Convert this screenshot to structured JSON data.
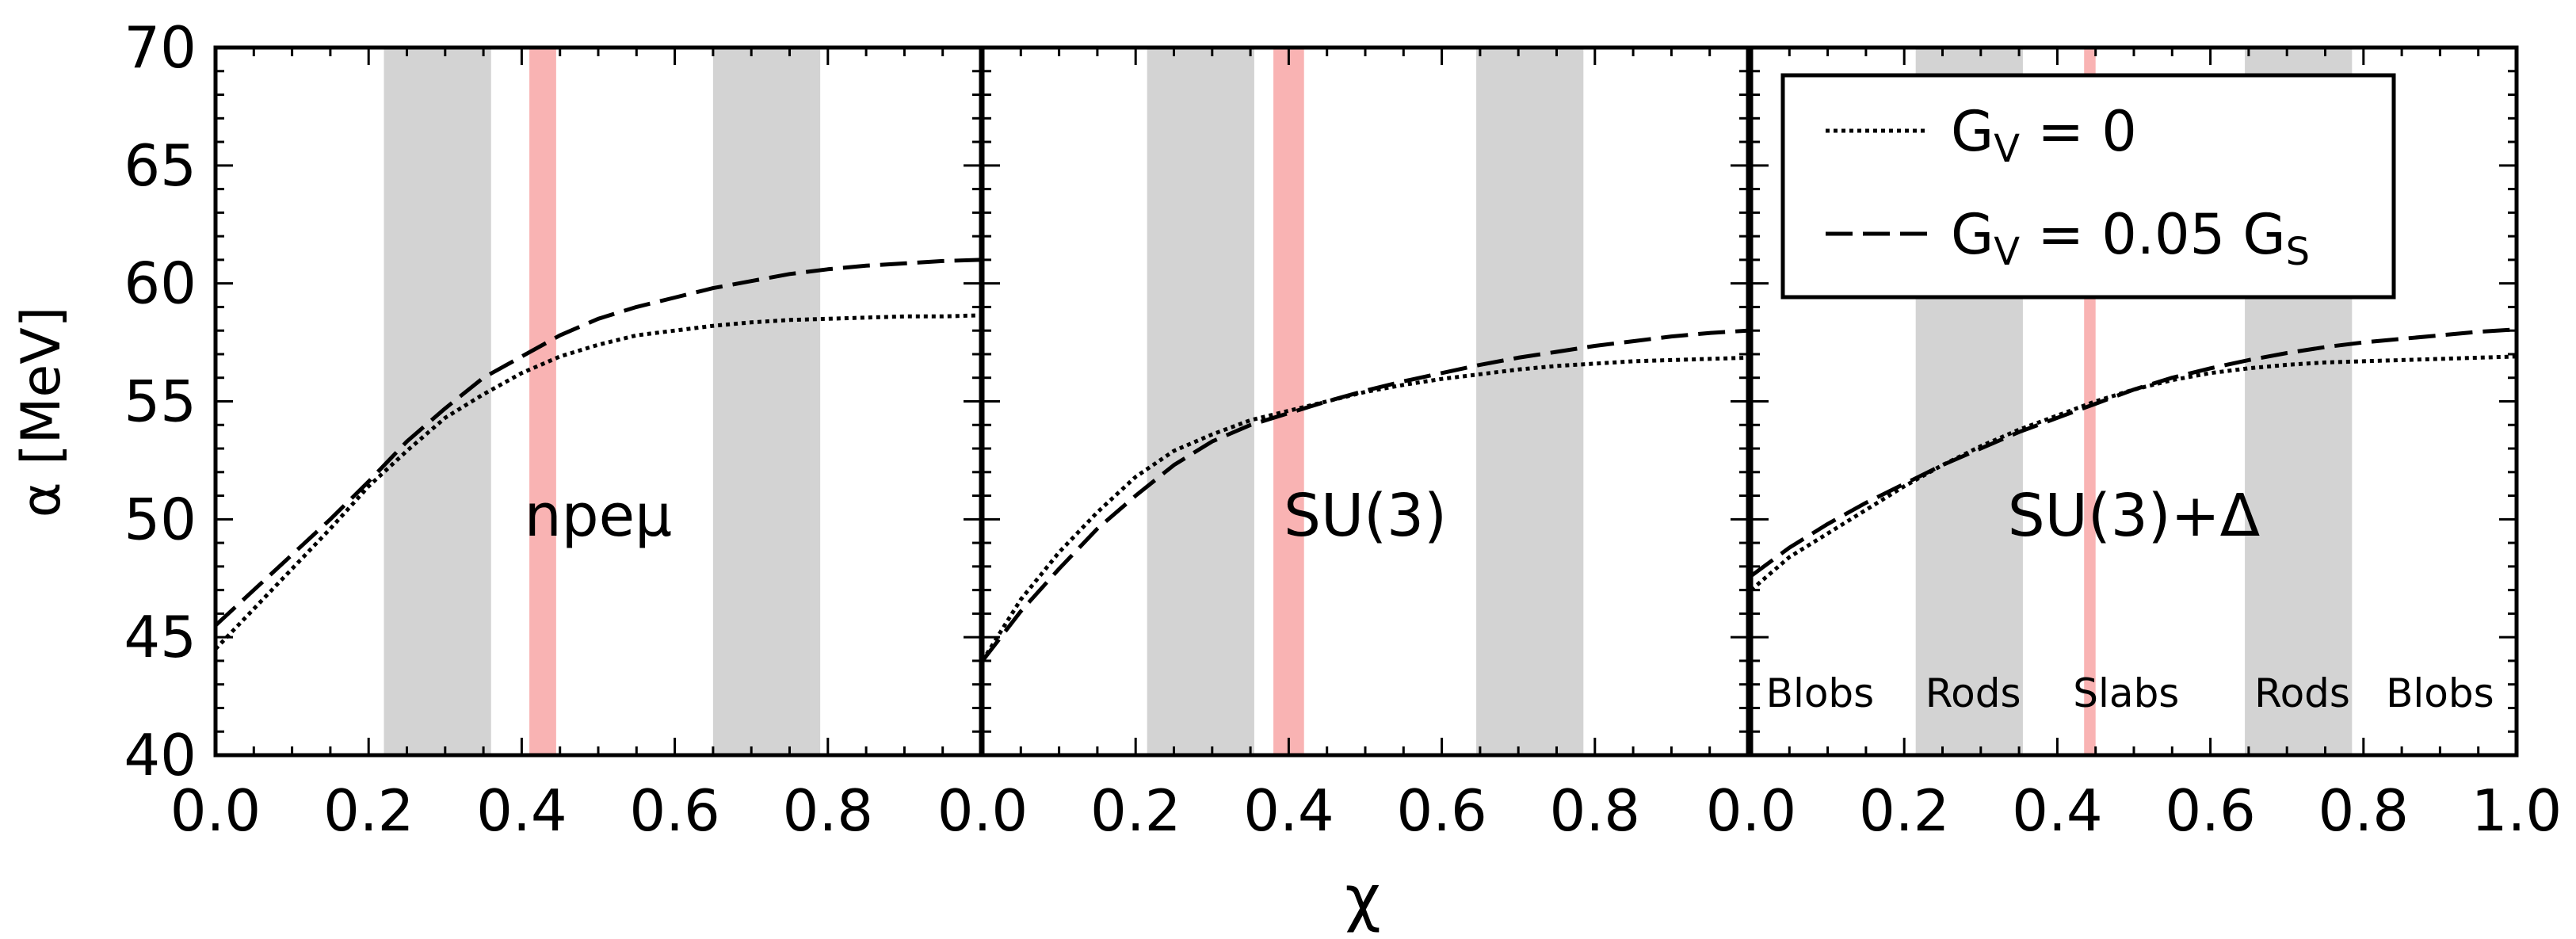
{
  "chart_data": {
    "type": "line",
    "ylabel": "α [MeV]",
    "xlabel": "χ",
    "xlim": [
      0,
      1
    ],
    "ylim": [
      40,
      70
    ],
    "yticks": [
      40,
      45,
      50,
      55,
      60,
      65,
      70
    ],
    "xtick_labels": [
      [
        "0.0",
        "0.2",
        "0.4",
        "0.6",
        "0.8"
      ],
      [
        "0.0",
        "0.2",
        "0.4",
        "0.6",
        "0.8"
      ],
      [
        "0.0",
        "0.2",
        "0.4",
        "0.6",
        "0.8",
        "1.0"
      ]
    ],
    "legend": {
      "position": "top-right of third panel",
      "entries": [
        {
          "label": "G_V = 0",
          "style": "dotted"
        },
        {
          "label": "G_V = 0.05 G_S",
          "style": "dashed"
        }
      ]
    },
    "phase_labels": [
      "Blobs",
      "Rods",
      "Slabs",
      "Rods",
      "Blobs"
    ],
    "panels": [
      {
        "label": "npeμ",
        "gray_bands": [
          [
            0.22,
            0.36
          ],
          [
            0.65,
            0.79
          ]
        ],
        "red_band": [
          0.41,
          0.445
        ],
        "series": [
          {
            "name": "G_V = 0",
            "style": "dotted",
            "x": [
              0,
              0.05,
              0.1,
              0.15,
              0.2,
              0.25,
              0.3,
              0.35,
              0.4,
              0.45,
              0.5,
              0.55,
              0.6,
              0.65,
              0.7,
              0.75,
              0.8,
              0.85,
              0.9,
              0.95,
              1.0
            ],
            "y": [
              44.5,
              46.2,
              47.9,
              49.6,
              51.4,
              52.9,
              54.3,
              55.3,
              56.2,
              56.9,
              57.4,
              57.8,
              58.0,
              58.2,
              58.35,
              58.45,
              58.5,
              58.55,
              58.6,
              58.6,
              58.65
            ]
          },
          {
            "name": "G_V = 0.05 G_S",
            "style": "dashed",
            "x": [
              0,
              0.05,
              0.1,
              0.15,
              0.2,
              0.25,
              0.3,
              0.35,
              0.4,
              0.45,
              0.5,
              0.55,
              0.6,
              0.65,
              0.7,
              0.75,
              0.8,
              0.85,
              0.9,
              0.95,
              1.0
            ],
            "y": [
              45.5,
              47.0,
              48.5,
              50.0,
              51.6,
              53.3,
              54.7,
              56.0,
              56.9,
              57.8,
              58.5,
              59.0,
              59.4,
              59.8,
              60.1,
              60.4,
              60.6,
              60.75,
              60.85,
              60.95,
              61.0
            ]
          }
        ]
      },
      {
        "label": "SU(3)",
        "gray_bands": [
          [
            0.215,
            0.355
          ],
          [
            0.645,
            0.785
          ]
        ],
        "red_band": [
          0.38,
          0.42
        ],
        "series": [
          {
            "name": "G_V = 0",
            "style": "dotted",
            "x": [
              0,
              0.05,
              0.1,
              0.15,
              0.2,
              0.25,
              0.3,
              0.35,
              0.4,
              0.45,
              0.5,
              0.55,
              0.6,
              0.65,
              0.7,
              0.75,
              0.8,
              0.85,
              0.9,
              0.95,
              1.0
            ],
            "y": [
              44.0,
              46.6,
              48.6,
              50.3,
              51.8,
              52.9,
              53.6,
              54.2,
              54.6,
              55.0,
              55.4,
              55.7,
              55.95,
              56.15,
              56.35,
              56.5,
              56.6,
              56.7,
              56.75,
              56.8,
              56.85
            ]
          },
          {
            "name": "G_V = 0.05 G_S",
            "style": "dashed",
            "x": [
              0,
              0.05,
              0.1,
              0.15,
              0.2,
              0.25,
              0.3,
              0.35,
              0.4,
              0.45,
              0.5,
              0.55,
              0.6,
              0.65,
              0.7,
              0.75,
              0.8,
              0.85,
              0.9,
              0.95,
              1.0
            ],
            "y": [
              44.0,
              46.1,
              47.9,
              49.6,
              51.0,
              52.3,
              53.3,
              54.0,
              54.5,
              55.0,
              55.45,
              55.85,
              56.2,
              56.55,
              56.85,
              57.1,
              57.35,
              57.55,
              57.75,
              57.9,
              58.0
            ]
          }
        ]
      },
      {
        "label": "SU(3)+Δ",
        "gray_bands": [
          [
            0.215,
            0.355
          ],
          [
            0.645,
            0.785
          ]
        ],
        "red_band": [
          0.435,
          0.45
        ],
        "series": [
          {
            "name": "G_V = 0",
            "style": "dotted",
            "x": [
              0,
              0.05,
              0.1,
              0.15,
              0.2,
              0.25,
              0.3,
              0.35,
              0.4,
              0.45,
              0.5,
              0.55,
              0.6,
              0.65,
              0.7,
              0.75,
              0.8,
              0.85,
              0.9,
              0.95,
              1.0
            ],
            "y": [
              47.0,
              48.4,
              49.4,
              50.4,
              51.4,
              52.3,
              53.1,
              53.8,
              54.4,
              55.0,
              55.5,
              55.9,
              56.2,
              56.4,
              56.55,
              56.65,
              56.7,
              56.75,
              56.8,
              56.85,
              56.9
            ]
          },
          {
            "name": "G_V = 0.05 G_S",
            "style": "dashed",
            "x": [
              0,
              0.05,
              0.1,
              0.15,
              0.2,
              0.25,
              0.3,
              0.35,
              0.4,
              0.45,
              0.5,
              0.55,
              0.6,
              0.65,
              0.7,
              0.75,
              0.8,
              0.85,
              0.9,
              0.95,
              1.0
            ],
            "y": [
              47.6,
              48.8,
              49.8,
              50.7,
              51.5,
              52.3,
              53.0,
              53.7,
              54.3,
              54.9,
              55.5,
              56.0,
              56.4,
              56.75,
              57.05,
              57.3,
              57.5,
              57.65,
              57.8,
              57.95,
              58.05
            ]
          }
        ]
      }
    ]
  }
}
